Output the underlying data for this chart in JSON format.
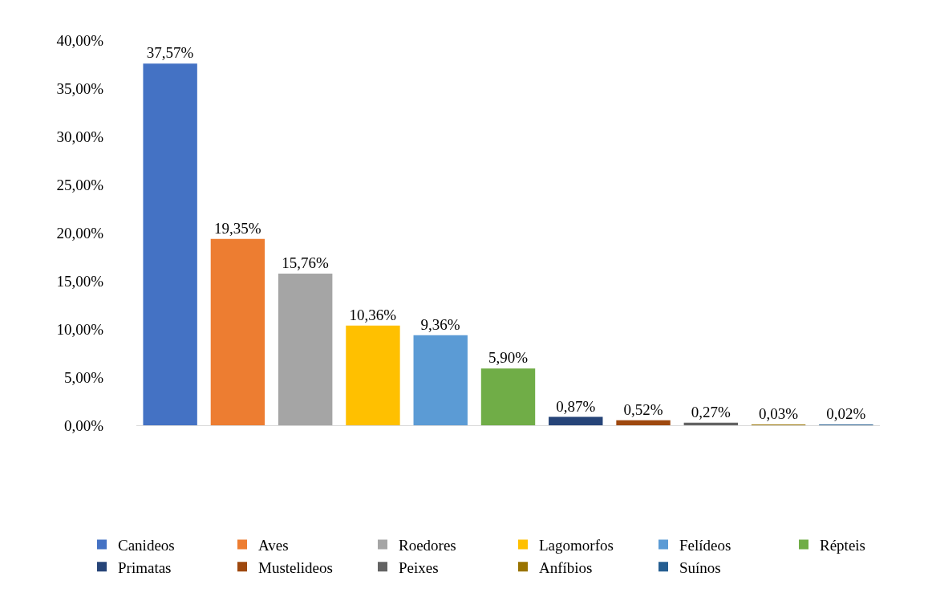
{
  "chart_data": {
    "type": "bar",
    "categories": [
      null,
      null,
      null,
      null,
      null,
      null,
      null,
      null,
      null,
      null,
      null
    ],
    "series": [
      {
        "name": "Canideos",
        "color": "#4472c4",
        "values": [
          37.57,
          null,
          null,
          null,
          null,
          null,
          null,
          null,
          null,
          null,
          null
        ],
        "value_labels": [
          "37,57%",
          null,
          null,
          null,
          null,
          null,
          null,
          null,
          null,
          null,
          null
        ]
      },
      {
        "name": "Aves",
        "color": "#ed7d31",
        "values": [
          null,
          19.35,
          null,
          null,
          null,
          null,
          null,
          null,
          null,
          null,
          null
        ],
        "value_labels": [
          null,
          "19,35%",
          null,
          null,
          null,
          null,
          null,
          null,
          null,
          null,
          null
        ]
      },
      {
        "name": "Roedores",
        "color": "#a5a5a5",
        "values": [
          null,
          null,
          15.76,
          null,
          null,
          null,
          null,
          null,
          null,
          null,
          null
        ],
        "value_labels": [
          null,
          null,
          "15,76%",
          null,
          null,
          null,
          null,
          null,
          null,
          null,
          null
        ]
      },
      {
        "name": "Lagomorfos",
        "color": "#ffc000",
        "values": [
          null,
          null,
          null,
          10.36,
          null,
          null,
          null,
          null,
          null,
          null,
          null
        ],
        "value_labels": [
          null,
          null,
          null,
          "10,36%",
          null,
          null,
          null,
          null,
          null,
          null,
          null
        ]
      },
      {
        "name": "Felídeos",
        "color": "#5b9bd5",
        "values": [
          null,
          null,
          null,
          null,
          9.36,
          null,
          null,
          null,
          null,
          null,
          null
        ],
        "value_labels": [
          null,
          null,
          null,
          null,
          "9,36%",
          null,
          null,
          null,
          null,
          null,
          null
        ]
      },
      {
        "name": "Répteis",
        "color": "#70ad47",
        "values": [
          null,
          null,
          null,
          null,
          null,
          5.9,
          null,
          null,
          null,
          null,
          null
        ],
        "value_labels": [
          null,
          null,
          null,
          null,
          null,
          "5,90%",
          null,
          null,
          null,
          null,
          null
        ]
      },
      {
        "name": "Primatas",
        "color": "#264478",
        "values": [
          null,
          null,
          null,
          null,
          null,
          null,
          0.87,
          null,
          null,
          null,
          null
        ],
        "value_labels": [
          null,
          null,
          null,
          null,
          null,
          null,
          "0,87%",
          null,
          null,
          null,
          null
        ]
      },
      {
        "name": "Mustelideos",
        "color": "#9e480e",
        "values": [
          null,
          null,
          null,
          null,
          null,
          null,
          null,
          0.52,
          null,
          null,
          null
        ],
        "value_labels": [
          null,
          null,
          null,
          null,
          null,
          null,
          null,
          "0,52%",
          null,
          null,
          null
        ]
      },
      {
        "name": "Peixes",
        "color": "#636363",
        "values": [
          null,
          null,
          null,
          null,
          null,
          null,
          null,
          null,
          0.27,
          null,
          null
        ],
        "value_labels": [
          null,
          null,
          null,
          null,
          null,
          null,
          null,
          null,
          "0,27%",
          null,
          null
        ]
      },
      {
        "name": "Anfíbios",
        "color": "#997300",
        "values": [
          null,
          null,
          null,
          null,
          null,
          null,
          null,
          null,
          null,
          0.03,
          null
        ],
        "value_labels": [
          null,
          null,
          null,
          null,
          null,
          null,
          null,
          null,
          null,
          "0,03%",
          null
        ]
      },
      {
        "name": "Suínos",
        "color": "#255e91",
        "values": [
          null,
          null,
          null,
          null,
          null,
          null,
          null,
          null,
          null,
          null,
          0.02
        ],
        "value_labels": [
          null,
          null,
          null,
          null,
          null,
          null,
          null,
          null,
          null,
          null,
          "0,02%"
        ]
      }
    ],
    "ylim": [
      0,
      40
    ],
    "yticks": [
      {
        "value": 0,
        "label": "0,00%"
      },
      {
        "value": 5,
        "label": "5,00%"
      },
      {
        "value": 10,
        "label": "10,00%"
      },
      {
        "value": 15,
        "label": "15,00%"
      },
      {
        "value": 20,
        "label": "20,00%"
      },
      {
        "value": 25,
        "label": "25,00%"
      },
      {
        "value": 30,
        "label": "30,00%"
      },
      {
        "value": 35,
        "label": "35,00%"
      },
      {
        "value": 40,
        "label": "40,00%"
      }
    ],
    "tick_labels": "y",
    "legend": "bottom"
  }
}
